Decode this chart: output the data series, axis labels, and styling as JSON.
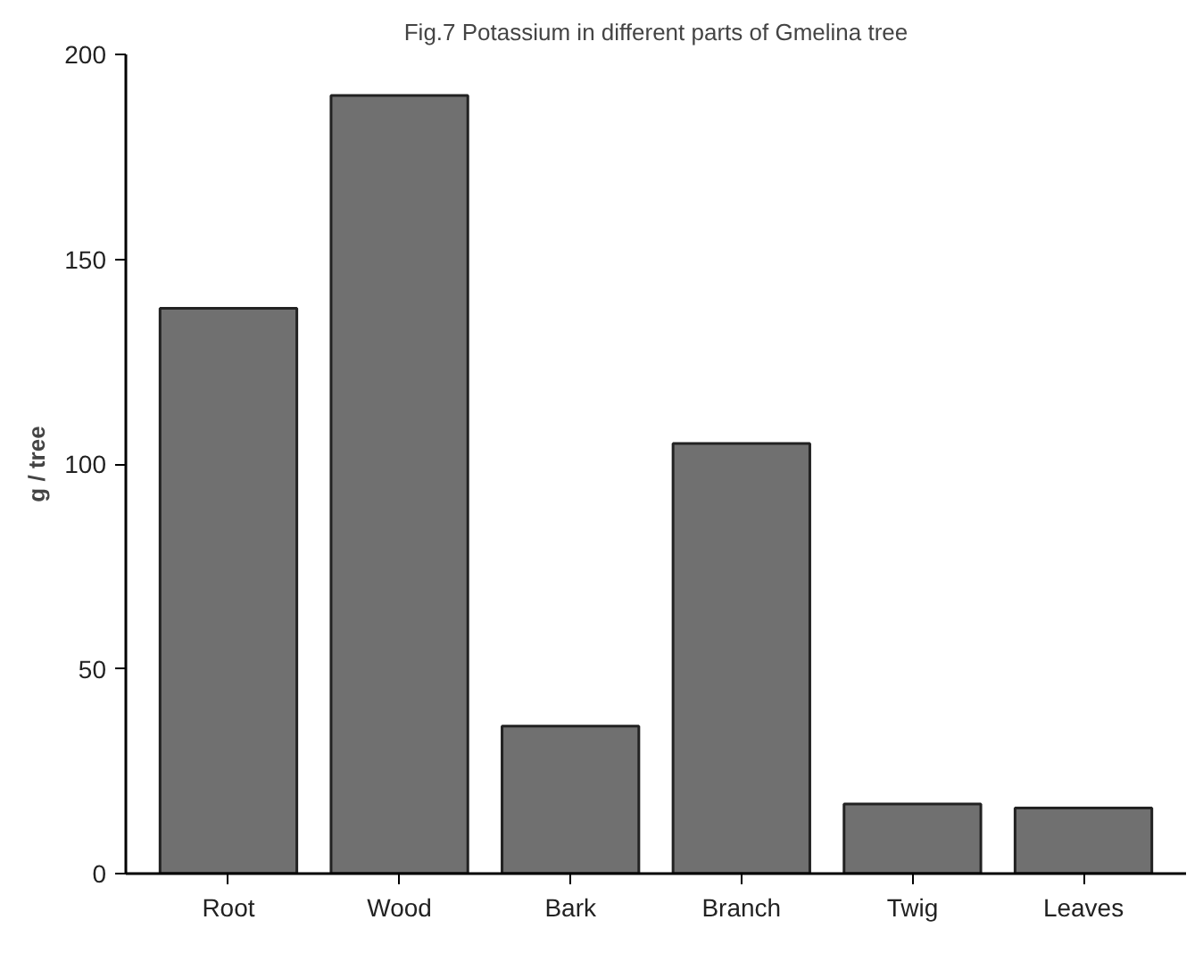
{
  "chart_data": {
    "type": "bar",
    "title": "Fig.7 Potassium in different parts of Gmelina tree",
    "ylabel": "g / tree",
    "categories": [
      "Root",
      "Wood",
      "Bark",
      "Branch",
      "Twig",
      "Leaves"
    ],
    "values": [
      138,
      190,
      36,
      105,
      17,
      16
    ],
    "color": "#707070",
    "ylim": [
      0,
      200
    ],
    "yticks": [
      0,
      50,
      100,
      150,
      200
    ],
    "grid": false
  }
}
